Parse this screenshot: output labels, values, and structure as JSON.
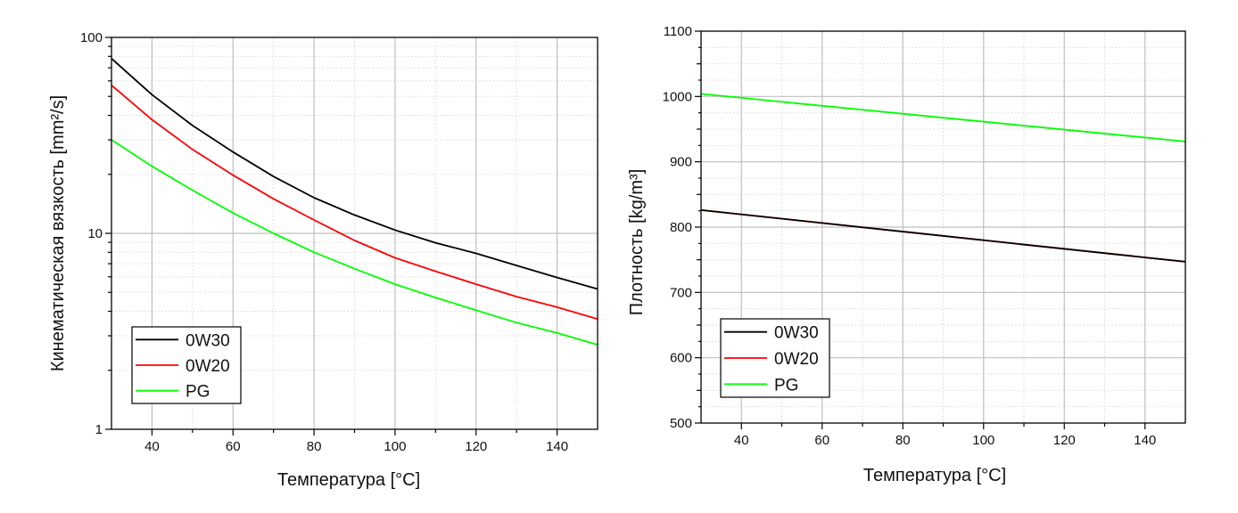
{
  "chart_data": [
    {
      "type": "line",
      "xlabel": "Температура [°C]",
      "ylabel": "Кинематическая вязкость  [mm²/s]",
      "yscale": "log",
      "xlim": [
        30,
        150
      ],
      "ylim": [
        1,
        100
      ],
      "xticks": [
        "40",
        "60",
        "80",
        "100",
        "120",
        "140"
      ],
      "yticks": [
        "1",
        "10",
        "100"
      ],
      "grid": true,
      "legend_position": "bottom-left",
      "series": [
        {
          "name": "0W30",
          "color": "#000000",
          "x": [
            30,
            40,
            50,
            60,
            70,
            80,
            90,
            100,
            110,
            120,
            130,
            140,
            150
          ],
          "y": [
            78,
            51,
            35.5,
            26,
            19.5,
            15.2,
            12.4,
            10.4,
            8.95,
            7.9,
            6.85,
            5.95,
            5.2
          ]
        },
        {
          "name": "0W20",
          "color": "#ff0000",
          "x": [
            30,
            40,
            50,
            60,
            70,
            80,
            90,
            100,
            110,
            120,
            130,
            140,
            150
          ],
          "y": [
            57,
            38,
            26.8,
            19.8,
            15.0,
            11.7,
            9.2,
            7.5,
            6.4,
            5.5,
            4.75,
            4.2,
            3.65
          ]
        },
        {
          "name": "PG",
          "color": "#00ff00",
          "x": [
            30,
            40,
            50,
            60,
            70,
            80,
            90,
            100,
            110,
            120,
            130,
            140,
            150
          ],
          "y": [
            30,
            22,
            16.6,
            12.7,
            10.0,
            8.0,
            6.6,
            5.5,
            4.7,
            4.05,
            3.5,
            3.1,
            2.7
          ]
        }
      ]
    },
    {
      "type": "line",
      "xlabel": "Температура  [°C]",
      "ylabel": "Плотность [kg/m³]",
      "xlim": [
        30,
        150
      ],
      "ylim": [
        500,
        1100
      ],
      "xticks": [
        "40",
        "60",
        "80",
        "100",
        "120",
        "140"
      ],
      "yticks": [
        "500",
        "600",
        "700",
        "800",
        "900",
        "1000",
        "1100"
      ],
      "grid": true,
      "legend_position": "bottom-left",
      "series": [
        {
          "name": "0W30",
          "color": "#000000",
          "x": [
            30,
            150
          ],
          "y": [
            826,
            747
          ]
        },
        {
          "name": "0W20",
          "color": "#ff0000",
          "x": [
            30,
            150
          ],
          "y": [
            826,
            747
          ]
        },
        {
          "name": "PG",
          "color": "#00ff00",
          "x": [
            30,
            150
          ],
          "y": [
            1004,
            931
          ]
        }
      ]
    }
  ]
}
